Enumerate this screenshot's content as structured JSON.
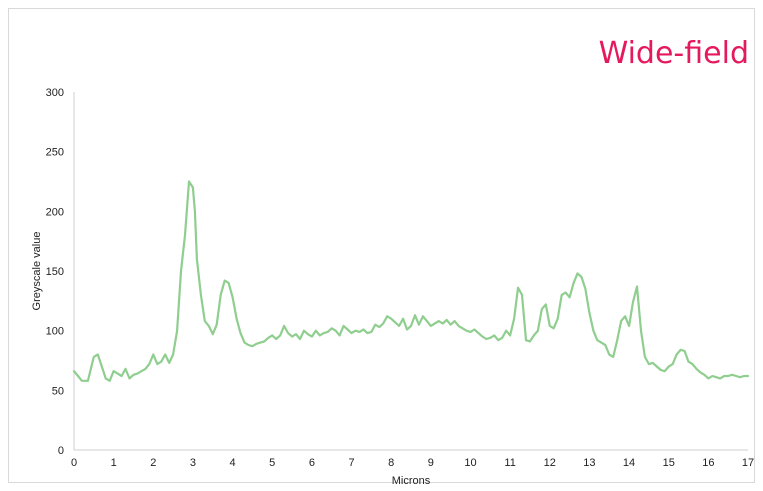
{
  "chart_data": {
    "type": "line",
    "title": "Wide-field",
    "xlabel": "Microns",
    "ylabel": "Greyscale value",
    "xlim": [
      0,
      17
    ],
    "ylim": [
      0,
      300
    ],
    "xticks": [
      "0",
      "1",
      "2",
      "3",
      "4",
      "5",
      "6",
      "7",
      "8",
      "9",
      "10",
      "11",
      "12",
      "13",
      "14",
      "15",
      "16",
      "17"
    ],
    "yticks": [
      "0",
      "50",
      "100",
      "150",
      "200",
      "250",
      "300"
    ],
    "grid": false,
    "legend": "none",
    "series": [
      {
        "color": "#8fce8f",
        "x": [
          0,
          0.1,
          0.2,
          0.35,
          0.5,
          0.6,
          0.7,
          0.8,
          0.9,
          1.0,
          1.1,
          1.2,
          1.3,
          1.4,
          1.5,
          1.6,
          1.7,
          1.8,
          1.9,
          2.0,
          2.1,
          2.2,
          2.3,
          2.4,
          2.5,
          2.6,
          2.7,
          2.8,
          2.9,
          3.0,
          3.05,
          3.1,
          3.2,
          3.3,
          3.4,
          3.5,
          3.6,
          3.7,
          3.8,
          3.9,
          4.0,
          4.1,
          4.2,
          4.3,
          4.4,
          4.5,
          4.6,
          4.7,
          4.8,
          4.9,
          5.0,
          5.1,
          5.2,
          5.3,
          5.4,
          5.5,
          5.6,
          5.7,
          5.8,
          5.9,
          6.0,
          6.1,
          6.2,
          6.3,
          6.4,
          6.5,
          6.6,
          6.7,
          6.8,
          6.9,
          7.0,
          7.1,
          7.2,
          7.3,
          7.4,
          7.5,
          7.6,
          7.7,
          7.8,
          7.9,
          8.0,
          8.1,
          8.2,
          8.3,
          8.4,
          8.5,
          8.6,
          8.7,
          8.8,
          8.9,
          9.0,
          9.1,
          9.2,
          9.3,
          9.4,
          9.5,
          9.6,
          9.7,
          9.8,
          9.9,
          10.0,
          10.1,
          10.2,
          10.3,
          10.4,
          10.5,
          10.6,
          10.7,
          10.8,
          10.9,
          11.0,
          11.1,
          11.2,
          11.3,
          11.4,
          11.5,
          11.6,
          11.7,
          11.8,
          11.9,
          12.0,
          12.1,
          12.2,
          12.3,
          12.4,
          12.5,
          12.6,
          12.7,
          12.8,
          12.9,
          13.0,
          13.1,
          13.2,
          13.3,
          13.4,
          13.5,
          13.6,
          13.7,
          13.8,
          13.9,
          14.0,
          14.1,
          14.2,
          14.3,
          14.4,
          14.5,
          14.6,
          14.7,
          14.8,
          14.9,
          15.0,
          15.1,
          15.2,
          15.3,
          15.4,
          15.5,
          15.6,
          15.7,
          15.8,
          15.9,
          16.0,
          16.1,
          16.2,
          16.3,
          16.4,
          16.5,
          16.6,
          16.7,
          16.8,
          16.9,
          17.0
        ],
        "y": [
          66,
          62,
          58,
          58,
          78,
          80,
          70,
          60,
          58,
          66,
          64,
          62,
          68,
          60,
          63,
          64,
          66,
          68,
          72,
          80,
          72,
          74,
          80,
          73,
          80,
          100,
          150,
          180,
          225,
          220,
          200,
          160,
          130,
          108,
          104,
          97,
          105,
          130,
          142,
          140,
          128,
          110,
          98,
          90,
          88,
          87,
          89,
          90,
          91,
          94,
          96,
          93,
          96,
          104,
          98,
          95,
          97,
          93,
          100,
          97,
          95,
          100,
          96,
          98,
          99,
          102,
          100,
          96,
          104,
          101,
          98,
          100,
          99,
          101,
          98,
          99,
          105,
          103,
          106,
          112,
          110,
          107,
          104,
          110,
          101,
          104,
          113,
          105,
          112,
          108,
          104,
          106,
          108,
          106,
          109,
          105,
          108,
          104,
          102,
          100,
          99,
          101,
          98,
          95,
          93,
          94,
          96,
          92,
          94,
          100,
          96,
          110,
          136,
          130,
          92,
          91,
          96,
          100,
          118,
          122,
          104,
          102,
          110,
          130,
          132,
          128,
          140,
          148,
          145,
          135,
          115,
          100,
          92,
          90,
          88,
          80,
          78,
          92,
          108,
          112,
          104,
          124,
          137,
          100,
          78,
          72,
          73,
          70,
          67,
          66,
          70,
          72,
          80,
          84,
          83,
          74,
          72,
          68,
          65,
          63,
          60,
          62,
          61,
          60,
          62,
          62,
          63,
          62,
          61,
          62,
          62
        ]
      }
    ]
  }
}
